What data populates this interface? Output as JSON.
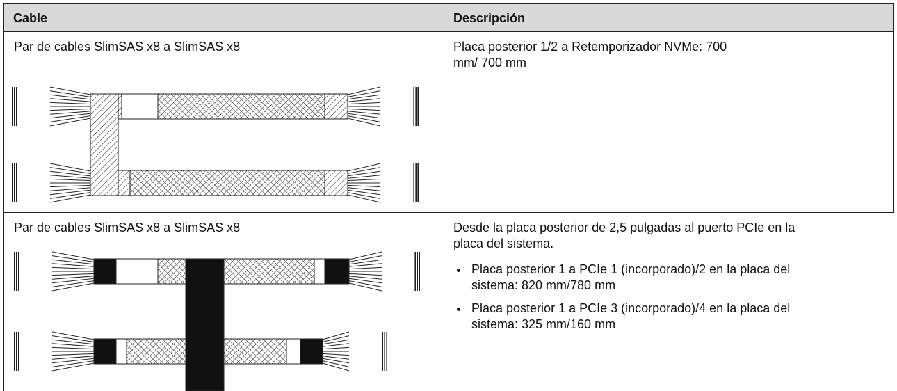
{
  "table": {
    "header": [
      "Cable",
      "Descripción"
    ],
    "rows": [
      {
        "cable": "Par de cables SlimSAS x8 a SlimSAS x8",
        "description": "Placa posterior 1/2 a Retemporizador NVMe: 700 mm/ 700 mm"
      },
      {
        "cable": "Par de cables SlimSAS x8 a SlimSAS x8",
        "description": "Desde la placa posterior de 2,5 pulgadas al puerto PCIe en la placa del sistema.",
        "items": [
          "Placa posterior 1 a PCIe 1 (incorporado)/2 en la placa del sistema: 820 mm/780 mm",
          "Placa posterior 1 a PCIe 3 (incorporado)/4 en la placa del sistema: 325 mm/160 mm"
        ]
      }
    ]
  }
}
